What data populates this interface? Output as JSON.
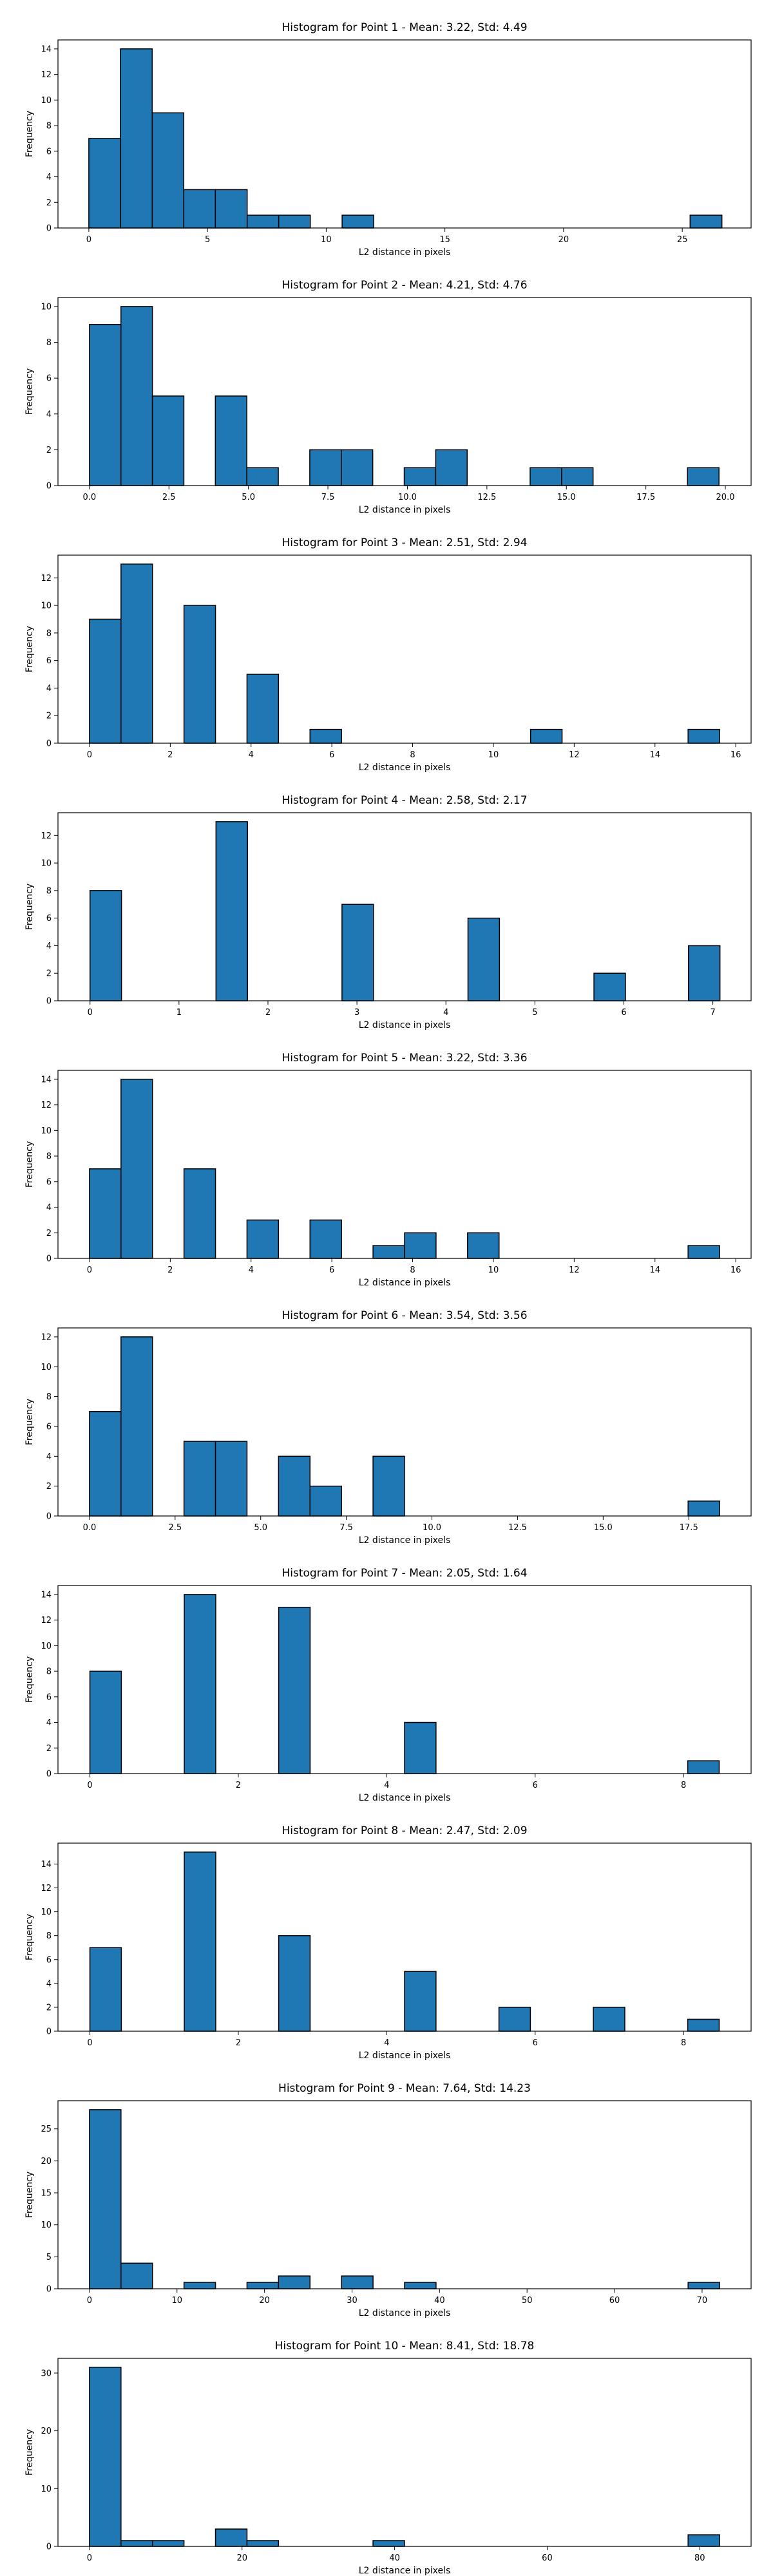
{
  "chart_data": [
    {
      "type": "bar",
      "title": "Histogram for Point 1 - Mean: 3.22, Std: 4.49",
      "xlabel": "L2 distance in pixels",
      "ylabel": "Frequency",
      "xlim": [
        -1.3,
        27.9
      ],
      "ylim": [
        0,
        14.7
      ],
      "xticks": [
        0,
        5,
        10,
        15,
        20,
        25
      ],
      "xtick_labels": [
        "0",
        "5",
        "10",
        "15",
        "20",
        "25"
      ],
      "yticks": [
        0,
        2,
        4,
        6,
        8,
        10,
        12,
        14
      ],
      "ytick_labels": [
        "0",
        "2",
        "4",
        "6",
        "8",
        "10",
        "12",
        "14"
      ],
      "bins": [
        {
          "x0": 0.0,
          "x1": 1.33,
          "value": 7
        },
        {
          "x0": 1.33,
          "x1": 2.67,
          "value": 14
        },
        {
          "x0": 2.67,
          "x1": 4.0,
          "value": 9
        },
        {
          "x0": 4.0,
          "x1": 5.33,
          "value": 3
        },
        {
          "x0": 5.33,
          "x1": 6.67,
          "value": 3
        },
        {
          "x0": 6.67,
          "x1": 8.0,
          "value": 1
        },
        {
          "x0": 8.0,
          "x1": 9.33,
          "value": 1
        },
        {
          "x0": 10.67,
          "x1": 12.0,
          "value": 1
        },
        {
          "x0": 25.33,
          "x1": 26.67,
          "value": 1
        }
      ]
    },
    {
      "type": "bar",
      "title": "Histogram for Point 2 - Mean: 4.21, Std: 4.76",
      "xlabel": "L2 distance in pixels",
      "ylabel": "Frequency",
      "xlim": [
        -0.99,
        20.81
      ],
      "ylim": [
        0,
        10.5
      ],
      "xticks": [
        0,
        2.5,
        5,
        7.5,
        10,
        12.5,
        15,
        17.5,
        20
      ],
      "xtick_labels": [
        "0.0",
        "2.5",
        "5.0",
        "7.5",
        "10.0",
        "12.5",
        "15.0",
        "17.5",
        "20.0"
      ],
      "yticks": [
        0,
        2,
        4,
        6,
        8,
        10
      ],
      "ytick_labels": [
        "0",
        "2",
        "4",
        "6",
        "8",
        "10"
      ],
      "bins": [
        {
          "x0": 0.0,
          "x1": 0.99,
          "value": 9
        },
        {
          "x0": 0.99,
          "x1": 1.98,
          "value": 10
        },
        {
          "x0": 1.98,
          "x1": 2.97,
          "value": 5
        },
        {
          "x0": 3.96,
          "x1": 4.95,
          "value": 5
        },
        {
          "x0": 4.95,
          "x1": 5.94,
          "value": 1
        },
        {
          "x0": 6.93,
          "x1": 7.92,
          "value": 2
        },
        {
          "x0": 7.92,
          "x1": 8.91,
          "value": 2
        },
        {
          "x0": 9.9,
          "x1": 10.89,
          "value": 1
        },
        {
          "x0": 10.89,
          "x1": 11.88,
          "value": 2
        },
        {
          "x0": 13.86,
          "x1": 14.85,
          "value": 1
        },
        {
          "x0": 14.85,
          "x1": 15.84,
          "value": 1
        },
        {
          "x0": 18.81,
          "x1": 19.8,
          "value": 1
        }
      ]
    },
    {
      "type": "bar",
      "title": "Histogram for Point 3 - Mean: 2.51, Std: 2.94",
      "xlabel": "L2 distance in pixels",
      "ylabel": "Frequency",
      "xlim": [
        -0.78,
        16.38
      ],
      "ylim": [
        0,
        13.65
      ],
      "xticks": [
        0,
        2,
        4,
        6,
        8,
        10,
        12,
        14,
        16
      ],
      "xtick_labels": [
        "0",
        "2",
        "4",
        "6",
        "8",
        "10",
        "12",
        "14",
        "16"
      ],
      "yticks": [
        0,
        2,
        4,
        6,
        8,
        10,
        12
      ],
      "ytick_labels": [
        "0",
        "2",
        "4",
        "6",
        "8",
        "10",
        "12"
      ],
      "bins": [
        {
          "x0": 0.0,
          "x1": 0.78,
          "value": 9
        },
        {
          "x0": 0.78,
          "x1": 1.56,
          "value": 13
        },
        {
          "x0": 2.34,
          "x1": 3.12,
          "value": 10
        },
        {
          "x0": 3.9,
          "x1": 4.68,
          "value": 5
        },
        {
          "x0": 5.46,
          "x1": 6.24,
          "value": 1
        },
        {
          "x0": 10.92,
          "x1": 11.7,
          "value": 1
        },
        {
          "x0": 14.82,
          "x1": 15.6,
          "value": 1
        }
      ]
    },
    {
      "type": "bar",
      "title": "Histogram for Point 4 - Mean: 2.58, Std: 2.17",
      "xlabel": "L2 distance in pixels",
      "ylabel": "Frequency",
      "xlim": [
        -0.36,
        7.43
      ],
      "ylim": [
        0,
        13.65
      ],
      "xticks": [
        0,
        1,
        2,
        3,
        4,
        5,
        6,
        7
      ],
      "xtick_labels": [
        "0",
        "1",
        "2",
        "3",
        "4",
        "5",
        "6",
        "7"
      ],
      "yticks": [
        0,
        2,
        4,
        6,
        8,
        10,
        12
      ],
      "ytick_labels": [
        "0",
        "2",
        "4",
        "6",
        "8",
        "10",
        "12"
      ],
      "bins": [
        {
          "x0": 0.0,
          "x1": 0.354,
          "value": 8
        },
        {
          "x0": 1.416,
          "x1": 1.77,
          "value": 13
        },
        {
          "x0": 2.832,
          "x1": 3.186,
          "value": 7
        },
        {
          "x0": 4.248,
          "x1": 4.602,
          "value": 6
        },
        {
          "x0": 5.664,
          "x1": 6.018,
          "value": 2
        },
        {
          "x0": 6.726,
          "x1": 7.08,
          "value": 4
        }
      ]
    },
    {
      "type": "bar",
      "title": "Histogram for Point 5 - Mean: 3.22, Std: 3.36",
      "xlabel": "L2 distance in pixels",
      "ylabel": "Frequency",
      "xlim": [
        -0.78,
        16.38
      ],
      "ylim": [
        0,
        14.7
      ],
      "xticks": [
        0,
        2,
        4,
        6,
        8,
        10,
        12,
        14,
        16
      ],
      "xtick_labels": [
        "0",
        "2",
        "4",
        "6",
        "8",
        "10",
        "12",
        "14",
        "16"
      ],
      "yticks": [
        0,
        2,
        4,
        6,
        8,
        10,
        12,
        14
      ],
      "ytick_labels": [
        "0",
        "2",
        "4",
        "6",
        "8",
        "10",
        "12",
        "14"
      ],
      "bins": [
        {
          "x0": 0.0,
          "x1": 0.78,
          "value": 7
        },
        {
          "x0": 0.78,
          "x1": 1.56,
          "value": 14
        },
        {
          "x0": 2.34,
          "x1": 3.12,
          "value": 7
        },
        {
          "x0": 3.9,
          "x1": 4.68,
          "value": 3
        },
        {
          "x0": 5.46,
          "x1": 6.24,
          "value": 3
        },
        {
          "x0": 7.02,
          "x1": 7.8,
          "value": 1
        },
        {
          "x0": 7.8,
          "x1": 8.58,
          "value": 2
        },
        {
          "x0": 9.36,
          "x1": 10.14,
          "value": 2
        },
        {
          "x0": 14.82,
          "x1": 15.6,
          "value": 1
        }
      ]
    },
    {
      "type": "bar",
      "title": "Histogram for Point 6 - Mean: 3.54, Std: 3.56",
      "xlabel": "L2 distance in pixels",
      "ylabel": "Frequency",
      "xlim": [
        -0.92,
        19.32
      ],
      "ylim": [
        0,
        12.6
      ],
      "xticks": [
        0,
        2.5,
        5,
        7.5,
        10,
        12.5,
        15,
        17.5
      ],
      "xtick_labels": [
        "0.0",
        "2.5",
        "5.0",
        "7.5",
        "10.0",
        "12.5",
        "15.0",
        "17.5"
      ],
      "yticks": [
        0,
        2,
        4,
        6,
        8,
        10,
        12
      ],
      "ytick_labels": [
        "0",
        "2",
        "4",
        "6",
        "8",
        "10",
        "12"
      ],
      "bins": [
        {
          "x0": 0.0,
          "x1": 0.92,
          "value": 7
        },
        {
          "x0": 0.92,
          "x1": 1.84,
          "value": 12
        },
        {
          "x0": 2.76,
          "x1": 3.68,
          "value": 5
        },
        {
          "x0": 3.68,
          "x1": 4.6,
          "value": 5
        },
        {
          "x0": 5.52,
          "x1": 6.44,
          "value": 4
        },
        {
          "x0": 6.44,
          "x1": 7.36,
          "value": 2
        },
        {
          "x0": 8.28,
          "x1": 9.2,
          "value": 4
        },
        {
          "x0": 17.48,
          "x1": 18.4,
          "value": 1
        }
      ]
    },
    {
      "type": "bar",
      "title": "Histogram for Point 7 - Mean: 2.05, Std: 1.64",
      "xlabel": "L2 distance in pixels",
      "ylabel": "Frequency",
      "xlim": [
        -0.43,
        8.91
      ],
      "ylim": [
        0,
        14.7
      ],
      "xticks": [
        0,
        2,
        4,
        6,
        8
      ],
      "xtick_labels": [
        "0",
        "2",
        "4",
        "6",
        "8"
      ],
      "yticks": [
        0,
        2,
        4,
        6,
        8,
        10,
        12,
        14
      ],
      "ytick_labels": [
        "0",
        "2",
        "4",
        "6",
        "8",
        "10",
        "12",
        "14"
      ],
      "bins": [
        {
          "x0": 0.0,
          "x1": 0.424,
          "value": 8
        },
        {
          "x0": 1.272,
          "x1": 1.696,
          "value": 14
        },
        {
          "x0": 2.544,
          "x1": 2.968,
          "value": 13
        },
        {
          "x0": 4.24,
          "x1": 4.664,
          "value": 4
        },
        {
          "x0": 8.056,
          "x1": 8.48,
          "value": 1
        }
      ]
    },
    {
      "type": "bar",
      "title": "Histogram for Point 8 - Mean: 2.47, Std: 2.09",
      "xlabel": "L2 distance in pixels",
      "ylabel": "Frequency",
      "xlim": [
        -0.43,
        8.91
      ],
      "ylim": [
        0,
        15.75
      ],
      "xticks": [
        0,
        2,
        4,
        6,
        8
      ],
      "xtick_labels": [
        "0",
        "2",
        "4",
        "6",
        "8"
      ],
      "yticks": [
        0,
        2,
        4,
        6,
        8,
        10,
        12,
        14
      ],
      "ytick_labels": [
        "0",
        "2",
        "4",
        "6",
        "8",
        "10",
        "12",
        "14"
      ],
      "bins": [
        {
          "x0": 0.0,
          "x1": 0.424,
          "value": 7
        },
        {
          "x0": 1.272,
          "x1": 1.696,
          "value": 15
        },
        {
          "x0": 2.544,
          "x1": 2.968,
          "value": 8
        },
        {
          "x0": 4.24,
          "x1": 4.664,
          "value": 5
        },
        {
          "x0": 5.512,
          "x1": 5.936,
          "value": 2
        },
        {
          "x0": 6.784,
          "x1": 7.208,
          "value": 2
        },
        {
          "x0": 8.056,
          "x1": 8.48,
          "value": 1
        }
      ]
    },
    {
      "type": "bar",
      "title": "Histogram for Point 9 - Mean: 7.64, Std: 14.23",
      "xlabel": "L2 distance in pixels",
      "ylabel": "Frequency",
      "xlim": [
        -3.6,
        75.6
      ],
      "ylim": [
        0,
        29.4
      ],
      "xticks": [
        0,
        10,
        20,
        30,
        40,
        50,
        60,
        70
      ],
      "xtick_labels": [
        "0",
        "10",
        "20",
        "30",
        "40",
        "50",
        "60",
        "70"
      ],
      "yticks": [
        0,
        5,
        10,
        15,
        20,
        25
      ],
      "ytick_labels": [
        "0",
        "5",
        "10",
        "15",
        "20",
        "25"
      ],
      "bins": [
        {
          "x0": 0.0,
          "x1": 3.6,
          "value": 28
        },
        {
          "x0": 3.6,
          "x1": 7.2,
          "value": 4
        },
        {
          "x0": 10.8,
          "x1": 14.4,
          "value": 1
        },
        {
          "x0": 18.0,
          "x1": 21.6,
          "value": 1
        },
        {
          "x0": 21.6,
          "x1": 25.2,
          "value": 2
        },
        {
          "x0": 28.8,
          "x1": 32.4,
          "value": 2
        },
        {
          "x0": 36.0,
          "x1": 39.6,
          "value": 1
        },
        {
          "x0": 68.4,
          "x1": 72.0,
          "value": 1
        }
      ]
    },
    {
      "type": "bar",
      "title": "Histogram for Point 10 - Mean: 8.41, Std: 18.78",
      "xlabel": "L2 distance in pixels",
      "ylabel": "Frequency",
      "xlim": [
        -4.13,
        86.73
      ],
      "ylim": [
        0,
        32.55
      ],
      "xticks": [
        0,
        20,
        40,
        60,
        80
      ],
      "xtick_labels": [
        "0",
        "20",
        "40",
        "60",
        "80"
      ],
      "yticks": [
        0,
        10,
        20,
        30
      ],
      "ytick_labels": [
        "0",
        "10",
        "20",
        "30"
      ],
      "bins": [
        {
          "x0": 0.0,
          "x1": 4.13,
          "value": 31
        },
        {
          "x0": 4.13,
          "x1": 8.26,
          "value": 1
        },
        {
          "x0": 8.26,
          "x1": 12.39,
          "value": 1
        },
        {
          "x0": 16.52,
          "x1": 20.65,
          "value": 3
        },
        {
          "x0": 20.65,
          "x1": 24.78,
          "value": 1
        },
        {
          "x0": 37.17,
          "x1": 41.3,
          "value": 1
        },
        {
          "x0": 78.47,
          "x1": 82.6,
          "value": 2
        }
      ]
    }
  ]
}
